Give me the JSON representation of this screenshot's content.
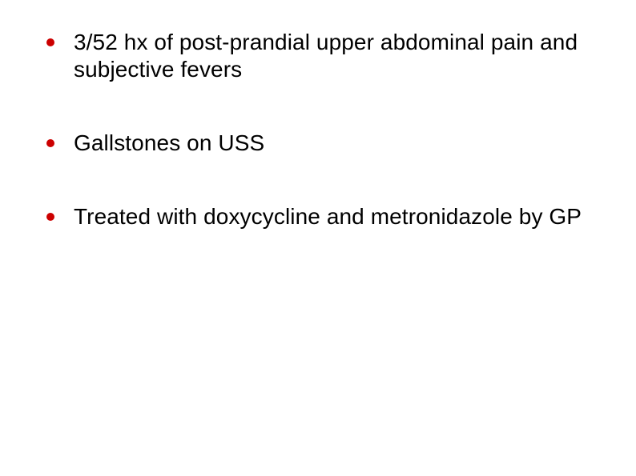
{
  "slide": {
    "background_color": "#ffffff",
    "bullet_color": "#cc0000",
    "text_color": "#000000",
    "font_size_pt": 21,
    "items": [
      "3/52 hx of post-prandial upper abdominal pain and subjective fevers",
      "Gallstones on USS",
      "Treated with doxycycline and metronidazole by GP"
    ]
  }
}
